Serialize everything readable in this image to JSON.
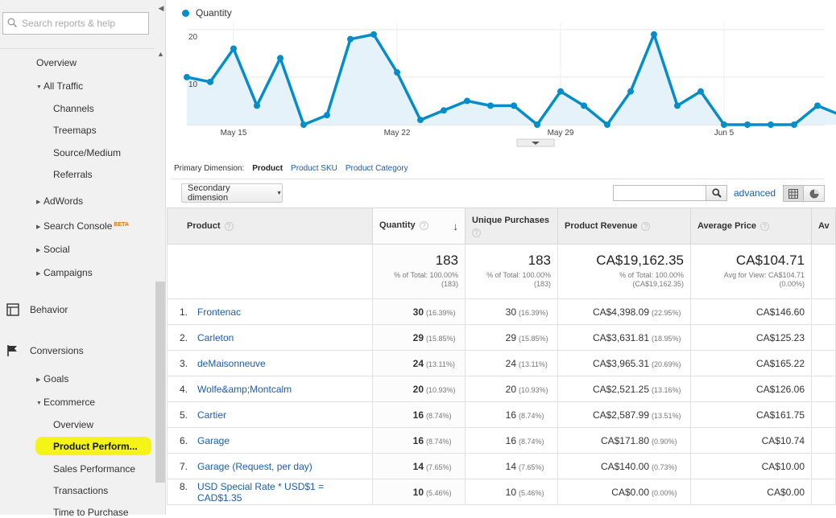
{
  "search": {
    "placeholder": "Search reports & help"
  },
  "sidebar": {
    "items": [
      {
        "label": "Overview"
      },
      {
        "label": "All Traffic"
      },
      {
        "label": "Channels"
      },
      {
        "label": "Treemaps"
      },
      {
        "label": "Source/Medium"
      },
      {
        "label": "Referrals"
      },
      {
        "label": "AdWords"
      },
      {
        "label": "Search Console",
        "badge": "BETA"
      },
      {
        "label": "Social"
      },
      {
        "label": "Campaigns"
      },
      {
        "label": "Behavior"
      },
      {
        "label": "Conversions"
      },
      {
        "label": "Goals"
      },
      {
        "label": "Ecommerce"
      },
      {
        "label": "Overview"
      },
      {
        "label": "Product Perform..."
      },
      {
        "label": "Sales Performance"
      },
      {
        "label": "Transactions"
      },
      {
        "label": "Time to Purchase"
      }
    ]
  },
  "chart_data": {
    "type": "area",
    "legend": [
      "Quantity"
    ],
    "x_tick_labels": [
      "May 15",
      "May 22",
      "May 29",
      "Jun 5"
    ],
    "y_tick_labels": [
      "20",
      "10"
    ],
    "ylim": [
      0,
      21.5
    ],
    "grid": true,
    "series": [
      {
        "name": "Quantity",
        "color": "#058dc7",
        "values": [
          10,
          9,
          16,
          4,
          14,
          0,
          2,
          18,
          19,
          11,
          1,
          3,
          5,
          4,
          4,
          0,
          7,
          4,
          0,
          7,
          19,
          4,
          7,
          0,
          0,
          0,
          0,
          4,
          2
        ]
      }
    ]
  },
  "primary_dimension": {
    "label": "Primary Dimension:",
    "active": "Product",
    "links": [
      "Product SKU",
      "Product Category"
    ]
  },
  "toolbar": {
    "secondary_dimension": "Secondary dimension",
    "advanced": "advanced"
  },
  "table": {
    "headers": [
      "Product",
      "Quantity",
      "Unique Purchases",
      "Product Revenue",
      "Average Price",
      "Av"
    ],
    "totals": {
      "quantity": "183",
      "quantity_sub1": "% of Total: 100.00%",
      "quantity_sub2": "(183)",
      "unique": "183",
      "unique_sub1": "% of Total: 100.00%",
      "unique_sub2": "(183)",
      "revenue": "CA$19,162.35",
      "revenue_sub1": "% of Total: 100.00%",
      "revenue_sub2": "(CA$19,162.35)",
      "avg_price": "CA$104.71",
      "avg_sub1": "Avg for View: CA$104.71",
      "avg_sub2": "(0.00%)"
    },
    "rows": [
      {
        "n": "1.",
        "product": "Frontenac",
        "qty": "30",
        "qty_pct": "(16.39%)",
        "uniq": "30",
        "uniq_pct": "(16.39%)",
        "rev": "CA$4,398.09",
        "rev_pct": "(22.95%)",
        "avg": "CA$146.60"
      },
      {
        "n": "2.",
        "product": "Carleton",
        "qty": "29",
        "qty_pct": "(15.85%)",
        "uniq": "29",
        "uniq_pct": "(15.85%)",
        "rev": "CA$3,631.81",
        "rev_pct": "(18.95%)",
        "avg": "CA$125.23"
      },
      {
        "n": "3.",
        "product": "deMaisonneuve",
        "qty": "24",
        "qty_pct": "(13.11%)",
        "uniq": "24",
        "uniq_pct": "(13.11%)",
        "rev": "CA$3,965.31",
        "rev_pct": "(20.69%)",
        "avg": "CA$165.22"
      },
      {
        "n": "4.",
        "product": "Wolfe&amp;Montcalm",
        "qty": "20",
        "qty_pct": "(10.93%)",
        "uniq": "20",
        "uniq_pct": "(10.93%)",
        "rev": "CA$2,521.25",
        "rev_pct": "(13.16%)",
        "avg": "CA$126.06"
      },
      {
        "n": "5.",
        "product": "Cartier",
        "qty": "16",
        "qty_pct": "(8.74%)",
        "uniq": "16",
        "uniq_pct": "(8.74%)",
        "rev": "CA$2,587.99",
        "rev_pct": "(13.51%)",
        "avg": "CA$161.75"
      },
      {
        "n": "6.",
        "product": "Garage",
        "qty": "16",
        "qty_pct": "(8.74%)",
        "uniq": "16",
        "uniq_pct": "(8.74%)",
        "rev": "CA$171.80",
        "rev_pct": "(0.90%)",
        "avg": "CA$10.74"
      },
      {
        "n": "7.",
        "product": "Garage (Request, per day)",
        "qty": "14",
        "qty_pct": "(7.65%)",
        "uniq": "14",
        "uniq_pct": "(7.65%)",
        "rev": "CA$140.00",
        "rev_pct": "(0.73%)",
        "avg": "CA$10.00"
      },
      {
        "n": "8.",
        "product": "USD Special Rate * USD$1 = CAD$1.35",
        "qty": "10",
        "qty_pct": "(5.46%)",
        "uniq": "10",
        "uniq_pct": "(5.46%)",
        "rev": "CA$0.00",
        "rev_pct": "(0.00%)",
        "avg": "CA$0.00"
      }
    ]
  },
  "colors": {
    "accent": "#058dc7",
    "link": "#1a5dab",
    "highlight": "#f4f400"
  }
}
